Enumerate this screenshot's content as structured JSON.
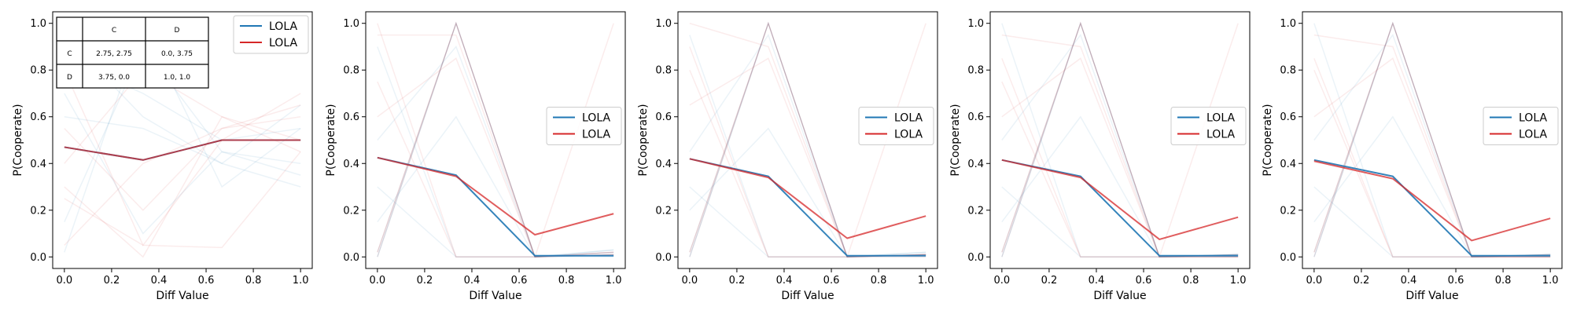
{
  "chart_data": [
    {
      "type": "line",
      "xlabel": "Diff Value",
      "ylabel": "P(Cooperate)",
      "xlim": [
        0,
        1
      ],
      "ylim": [
        0,
        1
      ],
      "xticks": [
        "0.0",
        "0.2",
        "0.4",
        "0.6",
        "0.8",
        "1.0"
      ],
      "yticks": [
        "0.0",
        "0.2",
        "0.4",
        "0.6",
        "0.8",
        "1.0"
      ],
      "legend_placement": "top-right",
      "x": [
        0,
        0.333,
        0.667,
        1
      ],
      "series": [
        {
          "name": "LOLA",
          "color": "#1f77b4",
          "values": [
            0.47,
            0.415,
            0.5,
            0.5
          ]
        },
        {
          "name": "LOLA",
          "color": "#d62728",
          "values": [
            0.47,
            0.415,
            0.5,
            0.5
          ]
        }
      ],
      "payoff_table": {
        "col_headers": [
          "C",
          "D"
        ],
        "rows": [
          {
            "label": "C",
            "cells": [
              "2.75, 2.75",
              "0.0, 3.75"
            ]
          },
          {
            "label": "D",
            "cells": [
              "3.75, 0.0",
              "1.0, 1.0"
            ]
          }
        ]
      },
      "faint_runs": [
        [
          0.02,
          1.0,
          0.3,
          0.55
        ],
        [
          0.3,
          0.0,
          0.6,
          0.45
        ],
        [
          0.6,
          0.55,
          0.4,
          0.65
        ],
        [
          0.8,
          0.05,
          0.5,
          0.7
        ],
        [
          0.15,
          0.9,
          0.45,
          0.35
        ],
        [
          0.55,
          0.2,
          0.55,
          0.6
        ],
        [
          0.95,
          0.6,
          0.4,
          0.3
        ],
        [
          0.4,
          0.8,
          0.6,
          0.5
        ],
        [
          0.7,
          0.1,
          0.45,
          0.4
        ],
        [
          0.05,
          0.4,
          0.55,
          0.65
        ],
        [
          0.85,
          0.7,
          0.5,
          0.55
        ],
        [
          0.25,
          0.05,
          0.04,
          0.45
        ]
      ]
    },
    {
      "type": "line",
      "xlabel": "Diff Value",
      "ylabel": "P(Cooperate)",
      "xlim": [
        0,
        1
      ],
      "ylim": [
        0,
        1
      ],
      "xticks": [
        "0.0",
        "0.2",
        "0.4",
        "0.6",
        "0.8",
        "1.0"
      ],
      "yticks": [
        "0.0",
        "0.2",
        "0.4",
        "0.6",
        "0.8",
        "1.0"
      ],
      "legend_placement": "center-right",
      "x": [
        0,
        0.333,
        0.667,
        1
      ],
      "series": [
        {
          "name": "LOLA",
          "color": "#1f77b4",
          "values": [
            0.425,
            0.35,
            0.005,
            0.005
          ]
        },
        {
          "name": "LOLA",
          "color": "#d62728",
          "values": [
            0.425,
            0.345,
            0.095,
            0.185
          ]
        }
      ],
      "faint_runs": [
        [
          0.0,
          1.0,
          0.0,
          0.01
        ],
        [
          0.02,
          1.0,
          0.0,
          0.02
        ],
        [
          0.9,
          0.0,
          0.0,
          0.03
        ],
        [
          0.6,
          0.85,
          0.0,
          0.02
        ],
        [
          0.3,
          0.0,
          0.0,
          0.0
        ],
        [
          0.95,
          0.95,
          0.0,
          0.01
        ],
        [
          0.15,
          0.6,
          0.0,
          0.02
        ],
        [
          0.75,
          0.0,
          0.0,
          1.0
        ],
        [
          0.5,
          0.9,
          0.0,
          0.03
        ],
        [
          1.0,
          0.0,
          0.0,
          0.01
        ]
      ]
    },
    {
      "type": "line",
      "xlabel": "Diff Value",
      "ylabel": "P(Cooperate)",
      "xlim": [
        0,
        1
      ],
      "ylim": [
        0,
        1
      ],
      "xticks": [
        "0.0",
        "0.2",
        "0.4",
        "0.6",
        "0.8",
        "1.0"
      ],
      "yticks": [
        "0.0",
        "0.2",
        "0.4",
        "0.6",
        "0.8",
        "1.0"
      ],
      "legend_placement": "center-right",
      "x": [
        0,
        0.333,
        0.667,
        1
      ],
      "series": [
        {
          "name": "LOLA",
          "color": "#1f77b4",
          "values": [
            0.42,
            0.345,
            0.005,
            0.005
          ]
        },
        {
          "name": "LOLA",
          "color": "#d62728",
          "values": [
            0.42,
            0.34,
            0.08,
            0.175
          ]
        }
      ],
      "faint_runs": [
        [
          0.0,
          1.0,
          0.0,
          0.01
        ],
        [
          0.02,
          1.0,
          0.0,
          0.01
        ],
        [
          0.95,
          0.0,
          0.0,
          0.02
        ],
        [
          0.65,
          0.85,
          0.0,
          0.01
        ],
        [
          0.3,
          0.0,
          0.0,
          0.0
        ],
        [
          1.0,
          0.9,
          0.0,
          0.01
        ],
        [
          0.2,
          0.55,
          0.0,
          0.01
        ],
        [
          0.8,
          0.0,
          0.0,
          1.0
        ],
        [
          0.45,
          0.95,
          0.0,
          0.02
        ],
        [
          0.9,
          0.0,
          0.0,
          0.0
        ]
      ]
    },
    {
      "type": "line",
      "xlabel": "Diff Value",
      "ylabel": "P(Cooperate)",
      "xlim": [
        0,
        1
      ],
      "ylim": [
        0,
        1
      ],
      "xticks": [
        "0.0",
        "0.2",
        "0.4",
        "0.6",
        "0.8",
        "1.0"
      ],
      "yticks": [
        "0.0",
        "0.2",
        "0.4",
        "0.6",
        "0.8",
        "1.0"
      ],
      "legend_placement": "center-right",
      "x": [
        0,
        0.333,
        0.667,
        1
      ],
      "series": [
        {
          "name": "LOLA",
          "color": "#1f77b4",
          "values": [
            0.415,
            0.345,
            0.005,
            0.005
          ]
        },
        {
          "name": "LOLA",
          "color": "#d62728",
          "values": [
            0.415,
            0.34,
            0.075,
            0.17
          ]
        }
      ],
      "faint_runs": [
        [
          0.0,
          1.0,
          0.0,
          0.01
        ],
        [
          0.02,
          1.0,
          0.0,
          0.0
        ],
        [
          1.0,
          0.0,
          0.0,
          0.01
        ],
        [
          0.6,
          0.85,
          0.0,
          0.01
        ],
        [
          0.3,
          0.0,
          0.0,
          0.0
        ],
        [
          0.95,
          0.9,
          0.0,
          0.0
        ],
        [
          0.15,
          0.6,
          0.0,
          0.01
        ],
        [
          0.75,
          0.0,
          0.0,
          1.0
        ],
        [
          0.5,
          0.95,
          0.0,
          0.01
        ],
        [
          0.85,
          0.0,
          0.0,
          0.0
        ]
      ]
    },
    {
      "type": "line",
      "xlabel": "Diff Value",
      "ylabel": "P(Cooperate)",
      "xlim": [
        0,
        1
      ],
      "ylim": [
        0,
        1
      ],
      "xticks": [
        "0.0",
        "0.2",
        "0.4",
        "0.6",
        "0.8",
        "1.0"
      ],
      "yticks": [
        "0.0",
        "0.2",
        "0.4",
        "0.6",
        "0.8",
        "1.0"
      ],
      "legend_placement": "center-right",
      "x": [
        0,
        0.333,
        0.667,
        1
      ],
      "series": [
        {
          "name": "LOLA",
          "color": "#1f77b4",
          "values": [
            0.415,
            0.345,
            0.005,
            0.005
          ]
        },
        {
          "name": "LOLA",
          "color": "#d62728",
          "values": [
            0.41,
            0.335,
            0.07,
            0.165
          ]
        }
      ],
      "faint_runs": [
        [
          0.0,
          1.0,
          0.0,
          0.01
        ],
        [
          0.02,
          1.0,
          0.0,
          0.0
        ],
        [
          1.0,
          0.0,
          0.0,
          0.01
        ],
        [
          0.6,
          0.85,
          0.0,
          0.01
        ],
        [
          0.3,
          0.0,
          0.0,
          0.0
        ],
        [
          0.95,
          0.9,
          0.0,
          0.0
        ],
        [
          0.15,
          0.6,
          0.0,
          0.01
        ],
        [
          0.8,
          0.0,
          0.0,
          0.0
        ],
        [
          0.5,
          0.95,
          0.0,
          0.01
        ],
        [
          0.85,
          0.0,
          0.0,
          0.0
        ]
      ]
    }
  ]
}
